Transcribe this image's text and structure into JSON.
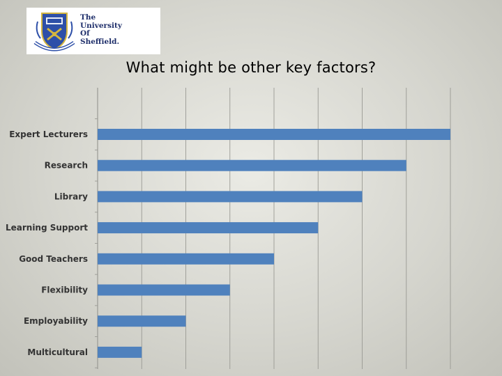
{
  "logo": {
    "line1": "The",
    "line2": "University",
    "line3": "Of",
    "line4": "Sheffield."
  },
  "title": "What might be other key factors?",
  "colors": {
    "bar": "#4f81bd",
    "grid": "#9a9a94",
    "shield_blue": "#2d4fa8",
    "shield_gold": "#d4b640",
    "text_dark": "#333333"
  },
  "chart_data": {
    "type": "bar",
    "orientation": "horizontal",
    "categories": [
      "Expert Lecturers",
      "Research",
      "Library",
      "Learning Support",
      "Good Teachers",
      "Flexibility",
      "Employability",
      "Multicultural"
    ],
    "values": [
      8,
      7,
      6,
      5,
      4,
      3,
      2,
      1
    ],
    "xlim": [
      0,
      8.5
    ],
    "grid": true,
    "title": "What might be other key factors?",
    "xlabel": "",
    "ylabel": ""
  }
}
